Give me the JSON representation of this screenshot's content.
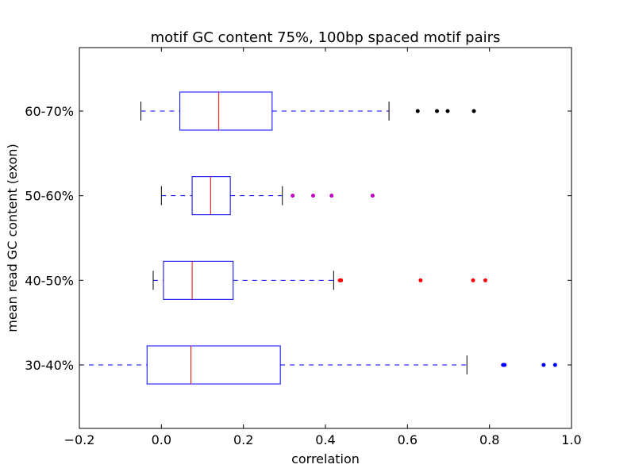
{
  "chart_data": {
    "type": "boxplot",
    "orientation": "horizontal",
    "title": "motif GC content 75%, 100bp spaced motif pairs",
    "xlabel": "correlation",
    "ylabel": "mean read GC content (exon)",
    "xlim": [
      -0.2,
      1.0
    ],
    "xticks": [
      -0.2,
      0.0,
      0.2,
      0.4,
      0.6,
      0.8,
      1.0
    ],
    "xtick_labels": [
      "−0.2",
      "0.0",
      "0.2",
      "0.4",
      "0.6",
      "0.8",
      "1.0"
    ],
    "grid": false,
    "categories": [
      "30-40%",
      "40-50%",
      "50-60%",
      "60-70%"
    ],
    "boxes": [
      {
        "label": "30-40%",
        "whisker_low": -0.2,
        "q1": -0.035,
        "median": 0.072,
        "q3": 0.29,
        "whisker_high": 0.745,
        "outliers": [
          0.833,
          0.837,
          0.932,
          0.96
        ],
        "outlier_color": "#0000ff"
      },
      {
        "label": "40-50%",
        "whisker_low": -0.02,
        "q1": 0.005,
        "median": 0.075,
        "q3": 0.175,
        "whisker_high": 0.42,
        "outliers": [
          0.435,
          0.438,
          0.632,
          0.76,
          0.79
        ],
        "outlier_color": "#ff0000"
      },
      {
        "label": "50-60%",
        "whisker_low": 0.0,
        "q1": 0.075,
        "median": 0.12,
        "q3": 0.168,
        "whisker_high": 0.295,
        "outliers": [
          0.32,
          0.37,
          0.415,
          0.515
        ],
        "outlier_color": "#bf00bf"
      },
      {
        "label": "60-70%",
        "whisker_low": -0.05,
        "q1": 0.045,
        "median": 0.14,
        "q3": 0.27,
        "whisker_high": 0.555,
        "outliers": [
          0.625,
          0.672,
          0.698,
          0.762
        ],
        "outlier_color": "#000000"
      }
    ],
    "colors": {
      "box": "#0000ff",
      "median": "#ff0000",
      "whisker": "#0000ff",
      "cap": "#000000",
      "frame": "#000000"
    }
  }
}
